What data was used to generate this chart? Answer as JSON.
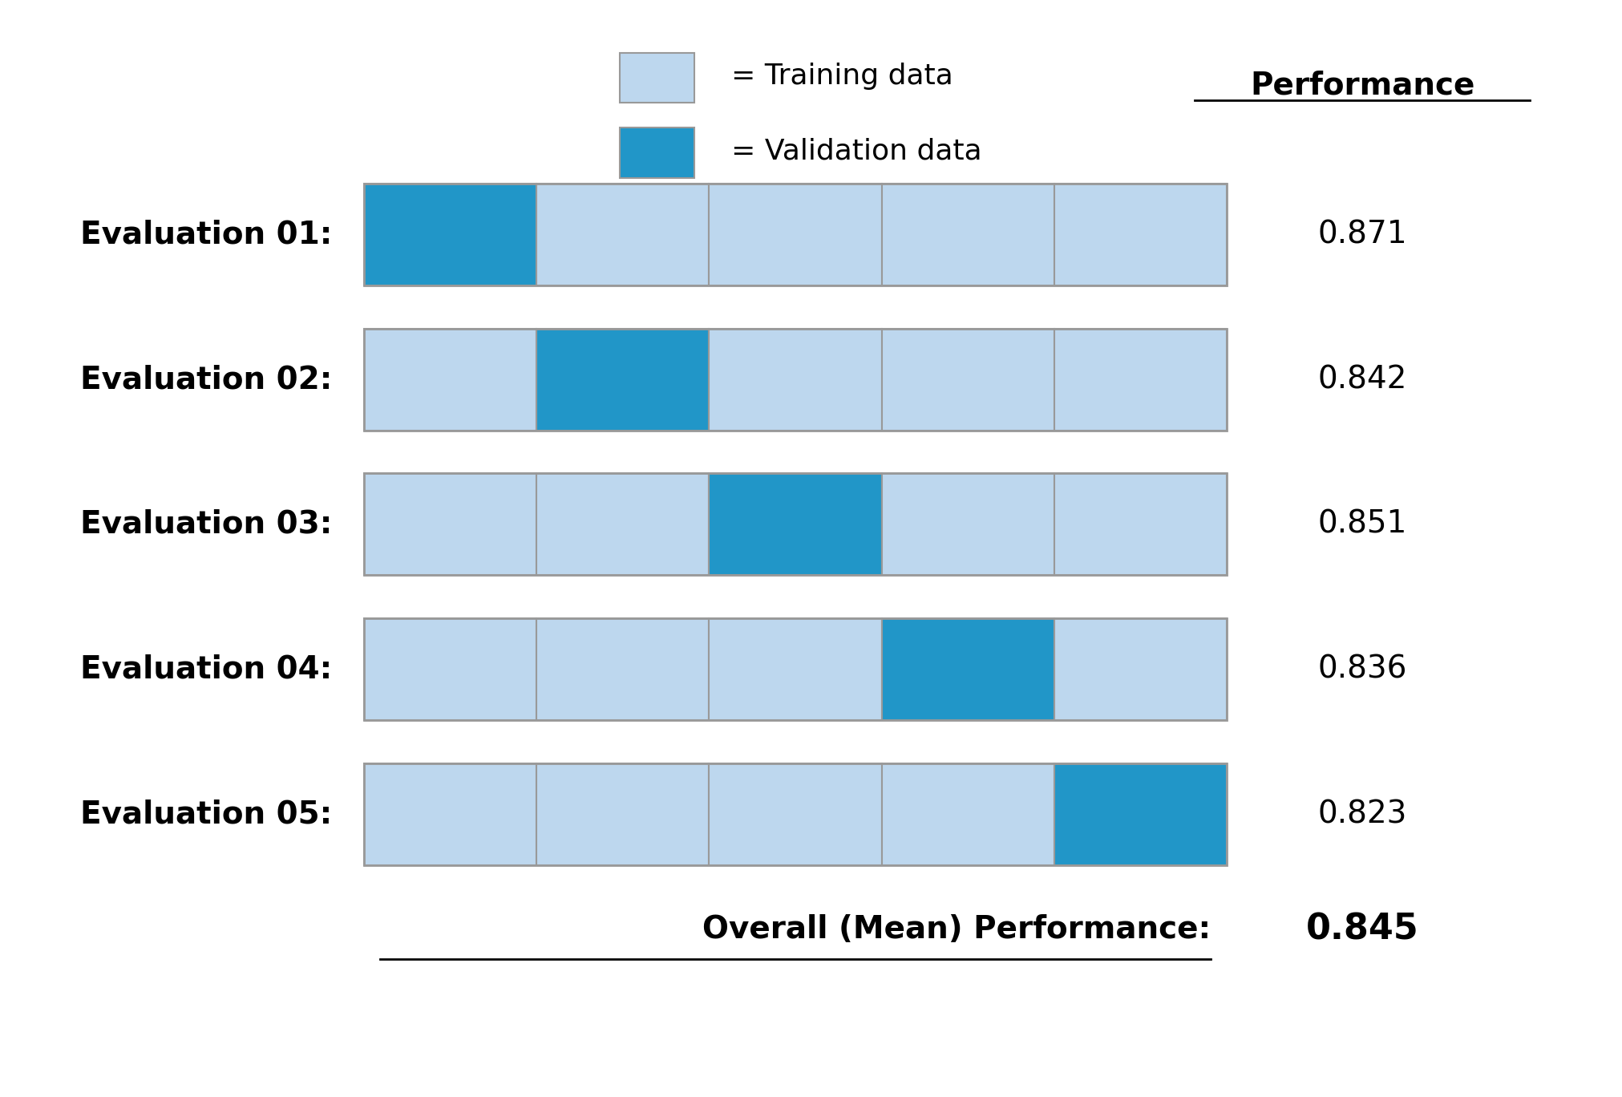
{
  "evaluations": [
    "Evaluation 01:",
    "Evaluation 02:",
    "Evaluation 03:",
    "Evaluation 04:",
    "Evaluation 05:"
  ],
  "n_folds": 5,
  "validation_fold": [
    0,
    1,
    2,
    3,
    4
  ],
  "performance": [
    0.871,
    0.842,
    0.851,
    0.836,
    0.823
  ],
  "overall_performance": 0.845,
  "training_color": "#BDD7EE",
  "validation_color": "#2196C8",
  "border_color": "#999999",
  "background_color": "#FFFFFF",
  "text_color": "#000000",
  "performance_label": "Performance",
  "overall_label": "Overall (Mean) Performance:",
  "legend_training": "= Training data",
  "legend_validation": "= Validation data"
}
